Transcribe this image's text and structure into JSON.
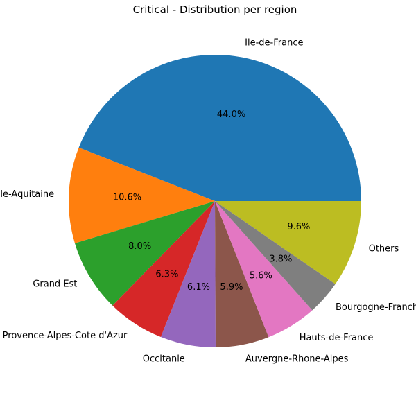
{
  "chart_data": {
    "type": "pie",
    "title": "Critical - Distribution per region",
    "categories": [
      "Ile-de-France",
      "Nouvelle-Aquitaine",
      "Grand Est",
      "Provence-Alpes-Cote d'Azur",
      "Occitanie",
      "Auvergne-Rhone-Alpes",
      "Hauts-de-France",
      "Bourgogne-Franche-Comte",
      "Others"
    ],
    "values": [
      44.0,
      10.6,
      8.0,
      6.3,
      6.1,
      5.9,
      5.6,
      3.8,
      9.6
    ],
    "percent_labels": [
      "44.0%",
      "10.6%",
      "8.0%",
      "6.3%",
      "6.1%",
      "5.9%",
      "5.6%",
      "3.8%",
      "9.6%"
    ],
    "colors": [
      "#1f77b4",
      "#ff7f0e",
      "#2ca02c",
      "#d62728",
      "#9467bd",
      "#8c564b",
      "#e377c2",
      "#7f7f7f",
      "#bcbd22"
    ],
    "start_angle": "0 degrees (3 o'clock)",
    "direction": "counterclockwise",
    "legend": "none"
  }
}
